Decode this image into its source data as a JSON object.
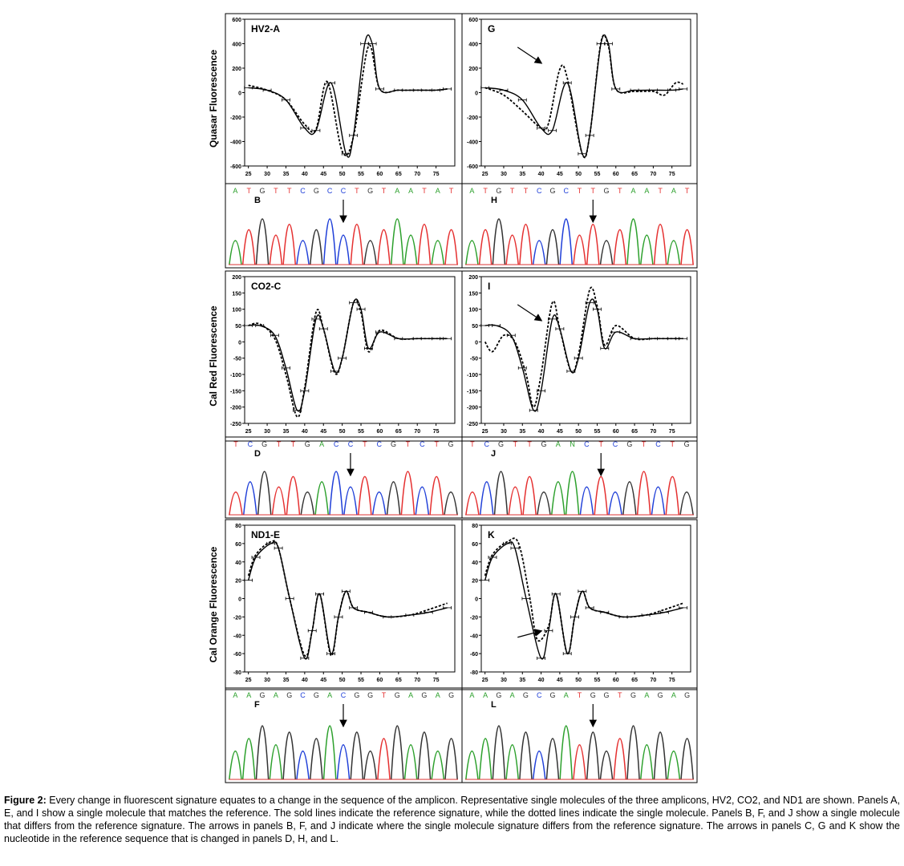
{
  "figure": {
    "colors": {
      "A": "#2ca02c",
      "C": "#1f3fd8",
      "G": "#333333",
      "T": "#e53030",
      "N": "#2ca02c",
      "frame": "#000000"
    },
    "ylabels": [
      "Quasar Fluorescence",
      "Cal Red Fluorescence",
      "Cal Orange Fluorescence"
    ],
    "melt_panels": [
      {
        "label": "HV2-A",
        "xticks": [
          "25",
          "30",
          "35",
          "40",
          "45",
          "50",
          "55",
          "60",
          "65",
          "70",
          "75"
        ],
        "ylim": [
          -600,
          600
        ],
        "yticks": [
          "600",
          "400",
          "200",
          "0",
          "-200",
          "-400",
          "-600"
        ],
        "reference": [
          [
            25,
            40
          ],
          [
            30,
            20
          ],
          [
            35,
            -60
          ],
          [
            40,
            -290
          ],
          [
            43,
            -310
          ],
          [
            47,
            80
          ],
          [
            51,
            -500
          ],
          [
            53,
            -350
          ],
          [
            56,
            400
          ],
          [
            58,
            400
          ],
          [
            60,
            30
          ],
          [
            65,
            20
          ],
          [
            70,
            20
          ],
          [
            75,
            20
          ],
          [
            78,
            30
          ]
        ],
        "molecule": [
          [
            25,
            60
          ],
          [
            30,
            20
          ],
          [
            35,
            -60
          ],
          [
            40,
            -260
          ],
          [
            43,
            -300
          ],
          [
            46,
            90
          ],
          [
            50,
            -480
          ],
          [
            53,
            -360
          ],
          [
            57,
            380
          ],
          [
            60,
            30
          ],
          [
            65,
            20
          ],
          [
            70,
            20
          ],
          [
            75,
            20
          ],
          [
            78,
            30
          ]
        ],
        "arrow": false
      },
      {
        "label": "G",
        "xticks": [
          "25",
          "30",
          "35",
          "40",
          "45",
          "50",
          "55",
          "60",
          "65",
          "70",
          "75"
        ],
        "ylim": [
          -600,
          600
        ],
        "yticks": [
          "600",
          "400",
          "200",
          "0",
          "-200",
          "-400",
          "-600"
        ],
        "reference": [
          [
            25,
            40
          ],
          [
            30,
            20
          ],
          [
            35,
            -60
          ],
          [
            40,
            -290
          ],
          [
            43,
            -310
          ],
          [
            47,
            80
          ],
          [
            51,
            -500
          ],
          [
            53,
            -350
          ],
          [
            56,
            400
          ],
          [
            58,
            400
          ],
          [
            60,
            30
          ],
          [
            65,
            20
          ],
          [
            70,
            20
          ],
          [
            75,
            20
          ],
          [
            78,
            30
          ]
        ],
        "molecule": [
          [
            25,
            40
          ],
          [
            30,
            -20
          ],
          [
            35,
            -150
          ],
          [
            40,
            -290
          ],
          [
            42,
            -250
          ],
          [
            45,
            190
          ],
          [
            47,
            120
          ],
          [
            51,
            -500
          ],
          [
            53,
            -350
          ],
          [
            56,
            410
          ],
          [
            58,
            380
          ],
          [
            60,
            30
          ],
          [
            65,
            10
          ],
          [
            70,
            10
          ],
          [
            73,
            -20
          ],
          [
            76,
            80
          ],
          [
            78,
            70
          ]
        ],
        "arrow": true
      },
      {
        "label": "CO2-C",
        "xticks": [
          "25",
          "30",
          "35",
          "40",
          "45",
          "50",
          "55",
          "60",
          "65",
          "70",
          "75"
        ],
        "ylim": [
          -250,
          200
        ],
        "yticks": [
          "200",
          "150",
          "100",
          "50",
          "0",
          "-50",
          "-100",
          "-150",
          "-200",
          "-250"
        ],
        "reference": [
          [
            25,
            50
          ],
          [
            28,
            50
          ],
          [
            32,
            20
          ],
          [
            35,
            -80
          ],
          [
            38,
            -210
          ],
          [
            40,
            -150
          ],
          [
            43,
            70
          ],
          [
            45,
            40
          ],
          [
            48,
            -90
          ],
          [
            50,
            -50
          ],
          [
            53,
            120
          ],
          [
            55,
            100
          ],
          [
            57,
            -20
          ],
          [
            60,
            30
          ],
          [
            65,
            10
          ],
          [
            70,
            10
          ],
          [
            75,
            10
          ],
          [
            78,
            10
          ]
        ],
        "molecule": [
          [
            25,
            50
          ],
          [
            28,
            55
          ],
          [
            32,
            10
          ],
          [
            35,
            -100
          ],
          [
            38,
            -230
          ],
          [
            40,
            -140
          ],
          [
            43,
            90
          ],
          [
            45,
            40
          ],
          [
            48,
            -95
          ],
          [
            50,
            -50
          ],
          [
            53,
            120
          ],
          [
            55,
            90
          ],
          [
            57,
            -30
          ],
          [
            60,
            35
          ],
          [
            65,
            10
          ],
          [
            70,
            10
          ],
          [
            75,
            10
          ],
          [
            78,
            10
          ]
        ],
        "arrow": false
      },
      {
        "label": "I",
        "xticks": [
          "25",
          "30",
          "35",
          "40",
          "45",
          "50",
          "55",
          "60",
          "65",
          "70",
          "75"
        ],
        "ylim": [
          -250,
          200
        ],
        "yticks": [
          "200",
          "150",
          "100",
          "50",
          "0",
          "-50",
          "-100",
          "-150",
          "-200",
          "-250"
        ],
        "reference": [
          [
            25,
            50
          ],
          [
            28,
            50
          ],
          [
            32,
            20
          ],
          [
            35,
            -80
          ],
          [
            38,
            -210
          ],
          [
            40,
            -150
          ],
          [
            43,
            70
          ],
          [
            45,
            40
          ],
          [
            48,
            -90
          ],
          [
            50,
            -50
          ],
          [
            53,
            120
          ],
          [
            55,
            100
          ],
          [
            57,
            -20
          ],
          [
            60,
            30
          ],
          [
            65,
            10
          ],
          [
            70,
            10
          ],
          [
            75,
            10
          ],
          [
            78,
            10
          ]
        ],
        "molecule": [
          [
            25,
            0
          ],
          [
            27,
            -30
          ],
          [
            30,
            20
          ],
          [
            33,
            0
          ],
          [
            36,
            -100
          ],
          [
            38,
            -200
          ],
          [
            40,
            -100
          ],
          [
            43,
            120
          ],
          [
            45,
            40
          ],
          [
            48,
            -90
          ],
          [
            50,
            -40
          ],
          [
            53,
            160
          ],
          [
            55,
            110
          ],
          [
            57,
            -10
          ],
          [
            60,
            50
          ],
          [
            65,
            10
          ],
          [
            70,
            10
          ],
          [
            75,
            10
          ],
          [
            78,
            10
          ]
        ],
        "arrow": true
      },
      {
        "label": "ND1-E",
        "xticks": [
          "25",
          "30",
          "35",
          "40",
          "45",
          "50",
          "55",
          "60",
          "65",
          "70",
          "75"
        ],
        "ylim": [
          -80,
          80
        ],
        "yticks": [
          "80",
          "60",
          "40",
          "20",
          "0",
          "-20",
          "-40",
          "-60",
          "-80"
        ],
        "reference": [
          [
            25,
            20
          ],
          [
            27,
            45
          ],
          [
            31,
            60
          ],
          [
            33,
            55
          ],
          [
            36,
            0
          ],
          [
            40,
            -65
          ],
          [
            42,
            -35
          ],
          [
            44,
            5
          ],
          [
            47,
            -60
          ],
          [
            49,
            -20
          ],
          [
            51,
            8
          ],
          [
            53,
            -10
          ],
          [
            57,
            -15
          ],
          [
            62,
            -20
          ],
          [
            68,
            -18
          ],
          [
            73,
            -15
          ],
          [
            78,
            -10
          ]
        ],
        "molecule": [
          [
            25,
            25
          ],
          [
            27,
            48
          ],
          [
            31,
            62
          ],
          [
            33,
            55
          ],
          [
            36,
            0
          ],
          [
            40,
            -62
          ],
          [
            42,
            -35
          ],
          [
            44,
            5
          ],
          [
            47,
            -62
          ],
          [
            49,
            -20
          ],
          [
            51,
            8
          ],
          [
            53,
            -10
          ],
          [
            57,
            -15
          ],
          [
            62,
            -20
          ],
          [
            68,
            -18
          ],
          [
            73,
            -12
          ],
          [
            78,
            -5
          ]
        ],
        "arrow": false
      },
      {
        "label": "K",
        "xticks": [
          "25",
          "30",
          "35",
          "40",
          "45",
          "50",
          "55",
          "60",
          "65",
          "70",
          "75"
        ],
        "ylim": [
          -80,
          80
        ],
        "yticks": [
          "80",
          "60",
          "40",
          "20",
          "0",
          "-20",
          "-40",
          "-60",
          "-80"
        ],
        "reference": [
          [
            25,
            20
          ],
          [
            27,
            45
          ],
          [
            31,
            60
          ],
          [
            33,
            55
          ],
          [
            36,
            0
          ],
          [
            40,
            -65
          ],
          [
            42,
            -35
          ],
          [
            44,
            5
          ],
          [
            47,
            -60
          ],
          [
            49,
            -20
          ],
          [
            51,
            8
          ],
          [
            53,
            -10
          ],
          [
            57,
            -15
          ],
          [
            62,
            -20
          ],
          [
            68,
            -18
          ],
          [
            73,
            -15
          ],
          [
            78,
            -10
          ]
        ],
        "molecule": [
          [
            25,
            25
          ],
          [
            27,
            48
          ],
          [
            31,
            62
          ],
          [
            34,
            60
          ],
          [
            37,
            0
          ],
          [
            39,
            -45
          ],
          [
            42,
            -30
          ],
          [
            44,
            5
          ],
          [
            47,
            -60
          ],
          [
            49,
            -20
          ],
          [
            51,
            8
          ],
          [
            53,
            -10
          ],
          [
            57,
            -15
          ],
          [
            62,
            -20
          ],
          [
            68,
            -18
          ],
          [
            73,
            -12
          ],
          [
            78,
            -5
          ]
        ],
        "arrow": true
      }
    ],
    "seq_panels": [
      {
        "label": "B",
        "bases": [
          "A",
          "T",
          "G",
          "T",
          "T",
          "C",
          "G",
          "C",
          "C",
          "T",
          "G",
          "T",
          "A",
          "A",
          "T",
          "A",
          "T"
        ]
      },
      {
        "label": "H",
        "bases": [
          "A",
          "T",
          "G",
          "T",
          "T",
          "C",
          "G",
          "C",
          "T",
          "T",
          "G",
          "T",
          "A",
          "A",
          "T",
          "A",
          "T"
        ]
      },
      {
        "label": "D",
        "bases": [
          "T",
          "C",
          "G",
          "T",
          "T",
          "G",
          "A",
          "C",
          "C",
          "T",
          "C",
          "G",
          "T",
          "C",
          "T",
          "G"
        ]
      },
      {
        "label": "J",
        "bases": [
          "T",
          "C",
          "G",
          "T",
          "T",
          "G",
          "A",
          "N",
          "C",
          "T",
          "C",
          "G",
          "T",
          "C",
          "T",
          "G"
        ]
      },
      {
        "label": "F",
        "bases": [
          "A",
          "A",
          "G",
          "A",
          "G",
          "C",
          "G",
          "A",
          "C",
          "G",
          "G",
          "T",
          "G",
          "A",
          "G",
          "A",
          "G"
        ]
      },
      {
        "label": "L",
        "bases": [
          "A",
          "A",
          "G",
          "A",
          "G",
          "C",
          "G",
          "A",
          "T",
          "G",
          "G",
          "T",
          "G",
          "A",
          "G",
          "A",
          "G"
        ]
      }
    ]
  },
  "caption": {
    "label": "Figure 2:",
    "text": " Every change in fluorescent signature equates to a change in the sequence of the amplicon.  Representative single molecules of the three amplicons, HV2, CO2, and ND1 are shown.  Panels A, E, and I show a single molecule that matches the reference.  The sold lines indicate the reference signature, while the dotted lines indicate the single molecule.  Panels B, F, and J show a single molecule that differs from the reference signature.  The arrows in panels B, F, and J indicate where the single molecule signature differs from the reference signature.  The arrows in panels C, G and K show the nucleotide in the reference sequence that is changed in panels D, H, and L."
  }
}
